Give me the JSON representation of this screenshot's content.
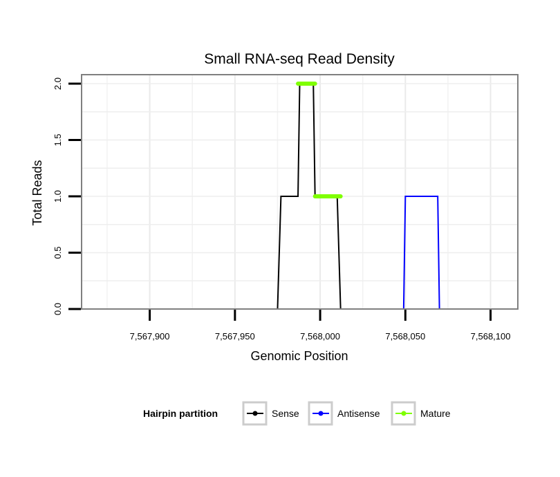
{
  "chart_data": {
    "type": "line",
    "title": "Small RNA-seq Read Density",
    "xlabel": "Genomic Position",
    "ylabel": "Total Reads",
    "xlim": [
      7567860,
      7568116
    ],
    "ylim": [
      0,
      2.08
    ],
    "x_ticks": [
      7567900,
      7567950,
      7568000,
      7568050,
      7568100
    ],
    "x_tick_labels": [
      "7,567,900",
      "7,567,950",
      "7,568,000",
      "7,568,050",
      "7,568,100"
    ],
    "y_ticks": [
      0,
      0.5,
      1,
      1.5,
      2
    ],
    "y_tick_labels": [
      "0.0",
      "0.5",
      "1.0",
      "1.5",
      "2.0"
    ],
    "grid": true,
    "legend": {
      "title": "Hairpin partition",
      "position": "bottom",
      "entries": [
        "Sense",
        "Antisense",
        "Mature"
      ]
    },
    "series": [
      {
        "name": "Antisense",
        "color": "#0000ff",
        "x": [
          7567976,
          7568011,
          7568049,
          7568050,
          7568069,
          7568070,
          7568112
        ],
        "y": [
          0,
          0,
          0,
          1,
          1,
          0,
          0
        ]
      },
      {
        "name": "Sense",
        "color": "#000000",
        "x": [
          7567864,
          7567975,
          7567977,
          7567987,
          7567988,
          7567996,
          7567997,
          7568010,
          7568012,
          7568049,
          7568050,
          7568069,
          7568070,
          7568112
        ],
        "y": [
          0,
          0,
          1,
          1,
          2,
          2,
          1,
          1,
          0,
          0,
          0,
          0,
          0,
          0
        ]
      },
      {
        "name": "Mature",
        "color": "#7fff00",
        "segments": [
          {
            "x": [
              7567987,
              7567997
            ],
            "y": [
              2,
              2
            ]
          },
          {
            "x": [
              7567997,
              7568012
            ],
            "y": [
              1,
              1
            ]
          }
        ]
      }
    ]
  }
}
